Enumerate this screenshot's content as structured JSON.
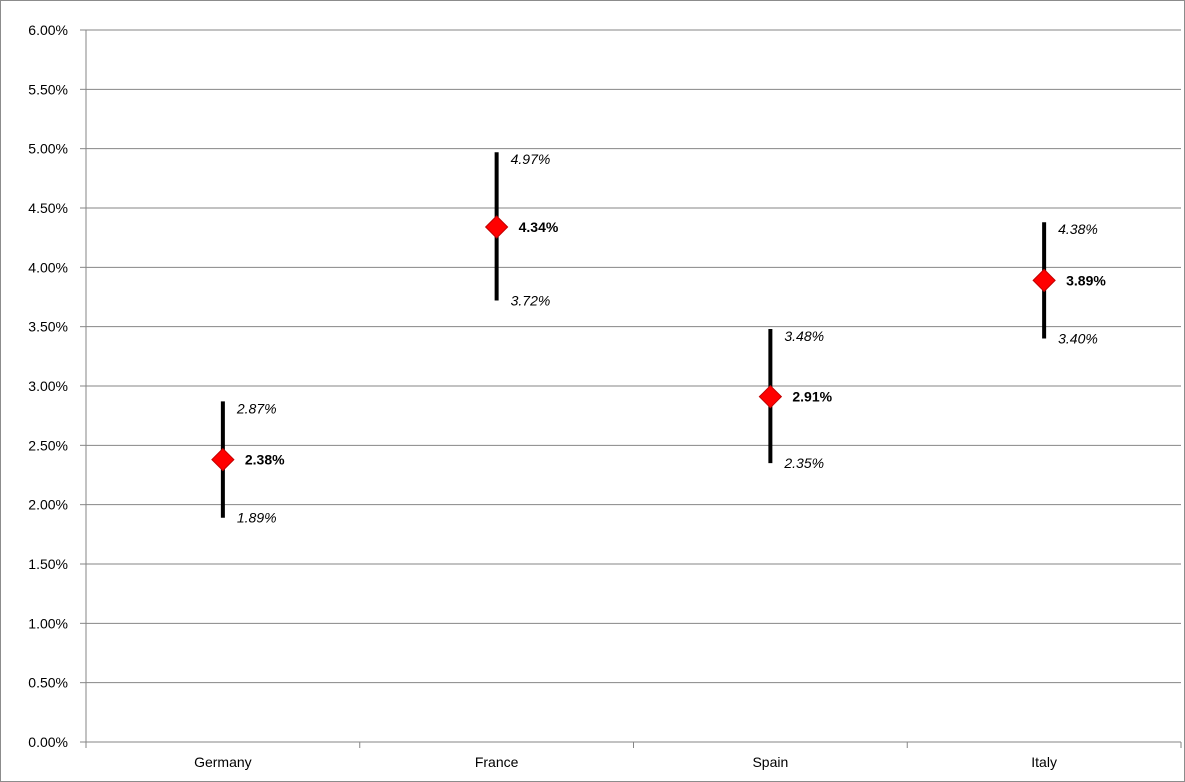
{
  "chart_data": {
    "type": "scatter",
    "categories": [
      "Germany",
      "France",
      "Spain",
      "Italy"
    ],
    "series": [
      {
        "values": [
          2.38,
          4.34,
          2.91,
          3.89
        ],
        "labels": [
          "2.38%",
          "4.34%",
          "2.91%",
          "3.89%"
        ],
        "marker": "diamond",
        "color": "#ff0000"
      }
    ],
    "range_high": [
      2.87,
      4.97,
      3.48,
      4.38
    ],
    "range_high_labels": [
      "2.87%",
      "4.97%",
      "3.48%",
      "4.38%"
    ],
    "range_low": [
      1.89,
      3.72,
      2.35,
      3.4
    ],
    "range_low_labels": [
      "1.89%",
      "3.72%",
      "2.35%",
      "3.40%"
    ],
    "range_bar_color": "#000000",
    "y_ticks": [
      "0.00%",
      "0.50%",
      "1.00%",
      "1.50%",
      "2.00%",
      "2.50%",
      "3.00%",
      "3.50%",
      "4.00%",
      "4.50%",
      "5.00%",
      "5.50%",
      "6.00%"
    ],
    "ylim": [
      0,
      6
    ],
    "title": "",
    "xlabel": "",
    "ylabel": "",
    "grid": true,
    "gridline_color": "#868686",
    "axis_color": "#868686"
  }
}
